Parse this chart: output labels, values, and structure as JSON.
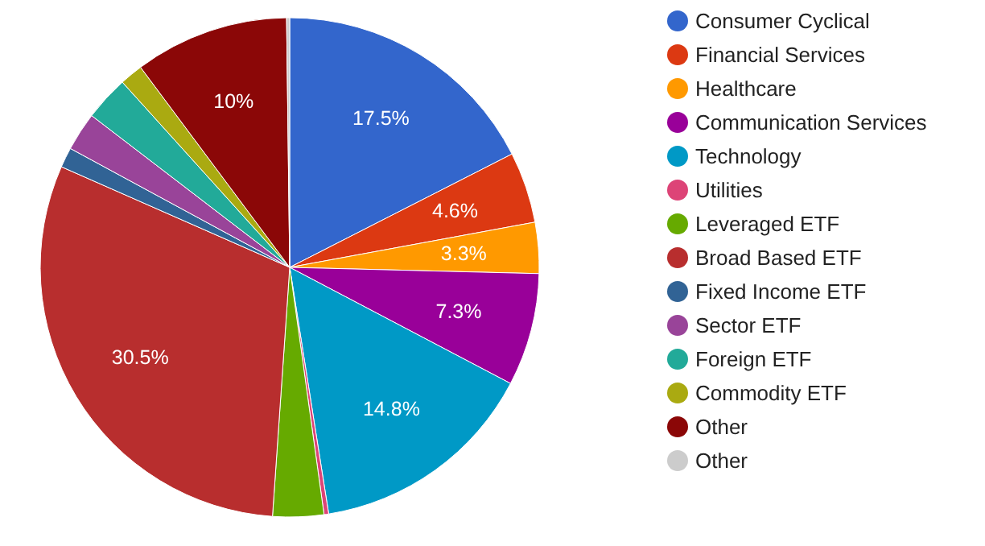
{
  "chart_data": {
    "type": "pie",
    "categories": [
      "Consumer Cyclical",
      "Financial Services",
      "Healthcare",
      "Communication Services",
      "Technology",
      "Utilities",
      "Leveraged ETF",
      "Broad Based ETF",
      "Fixed Income ETF",
      "Sector ETF",
      "Foreign ETF",
      "Commodity ETF",
      "Other",
      "Other"
    ],
    "values": [
      17.5,
      4.6,
      3.3,
      7.3,
      14.8,
      0.3,
      3.3,
      30.5,
      1.3,
      2.5,
      2.9,
      1.5,
      10,
      0.2
    ],
    "colors": [
      "#3366cc",
      "#dc3912",
      "#ff9900",
      "#990099",
      "#0099c6",
      "#dd4477",
      "#66aa00",
      "#b82e2e",
      "#316395",
      "#994499",
      "#22aa99",
      "#aaaa11",
      "#8b0707",
      "#cccccc"
    ],
    "value_labels": [
      "17.5%",
      "4.6%",
      "3.3%",
      "7.3%",
      "14.8%",
      null,
      null,
      "30.5%",
      null,
      null,
      null,
      null,
      "10%",
      null
    ],
    "legend": "right"
  }
}
